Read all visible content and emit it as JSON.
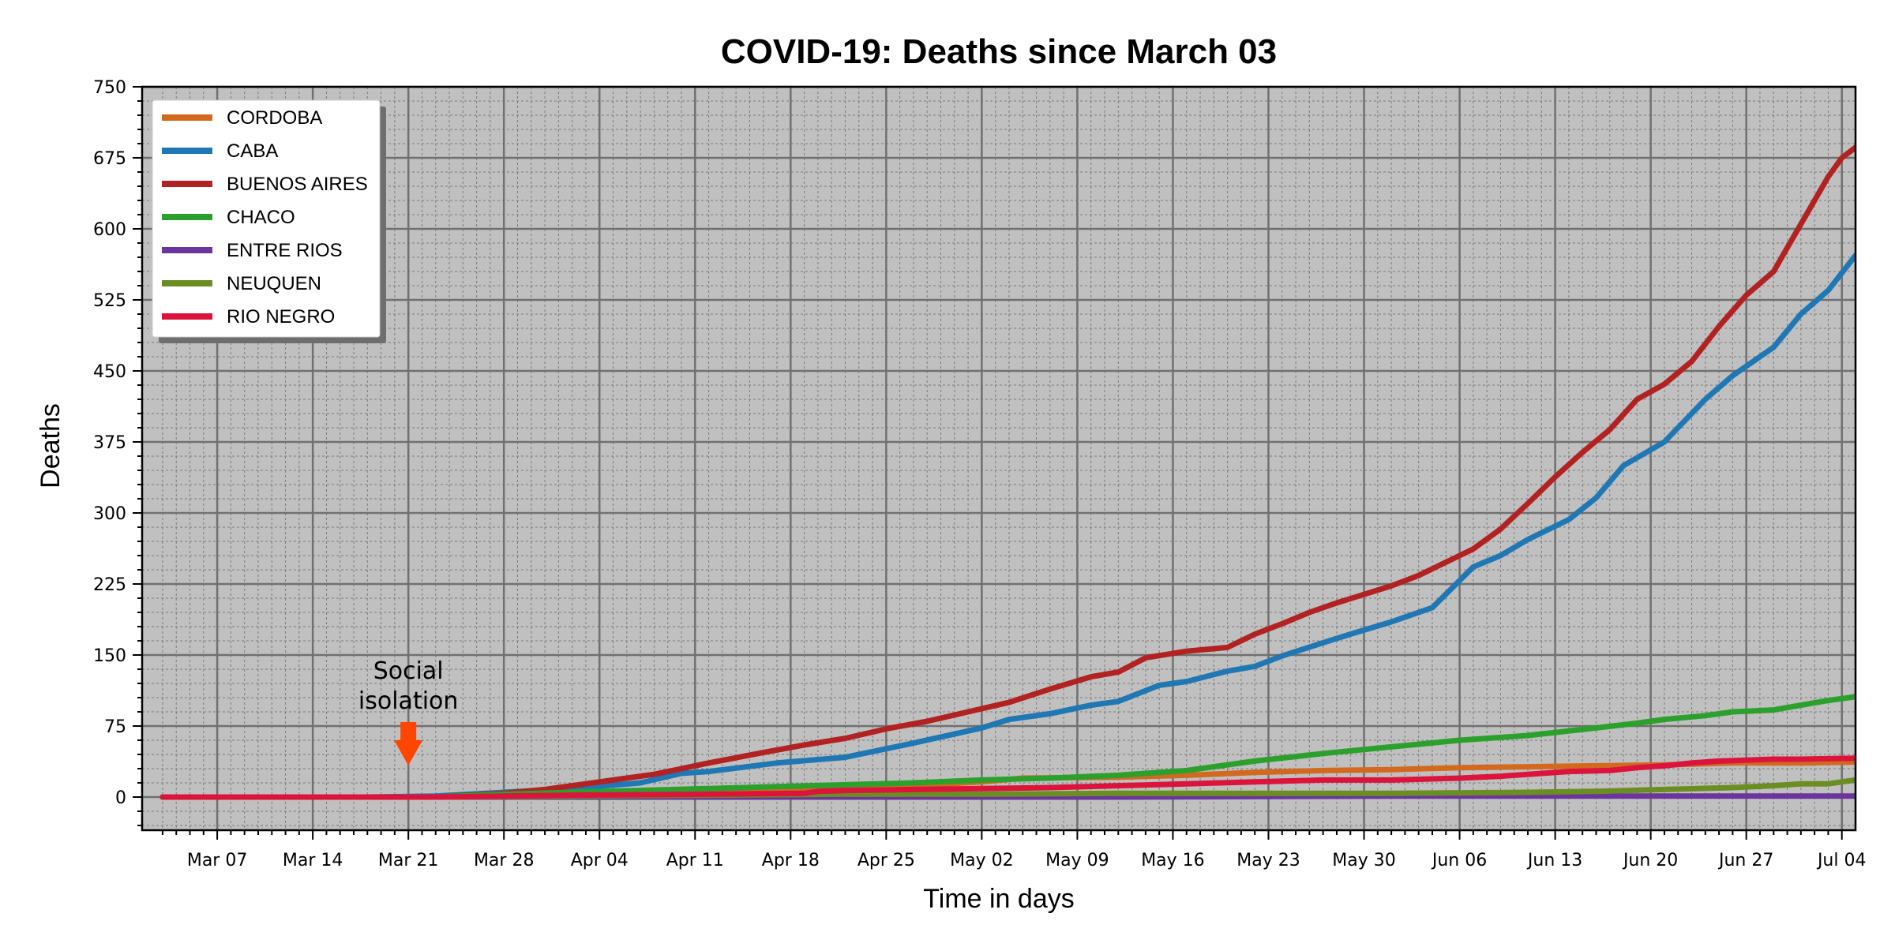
{
  "chart_data": {
    "type": "line",
    "title": "COVID-19: Deaths since March 03",
    "xlabel": "Time in days",
    "ylabel": "Deaths",
    "x_start": "Mar 03",
    "x_end": "Jul 05",
    "ylim": [
      -35,
      750
    ],
    "yticks": [
      0,
      75,
      150,
      225,
      300,
      375,
      450,
      525,
      600,
      675,
      750
    ],
    "xticks": [
      {
        "label": "Mar 07",
        "day": 4
      },
      {
        "label": "Mar 14",
        "day": 11
      },
      {
        "label": "Mar 21",
        "day": 18
      },
      {
        "label": "Mar 28",
        "day": 25
      },
      {
        "label": "Apr 04",
        "day": 32
      },
      {
        "label": "Apr 11",
        "day": 39
      },
      {
        "label": "Apr 18",
        "day": 46
      },
      {
        "label": "Apr 25",
        "day": 53
      },
      {
        "label": "May 02",
        "day": 60
      },
      {
        "label": "May 09",
        "day": 67
      },
      {
        "label": "May 16",
        "day": 74
      },
      {
        "label": "May 23",
        "day": 81
      },
      {
        "label": "May 30",
        "day": 88
      },
      {
        "label": "Jun 06",
        "day": 95
      },
      {
        "label": "Jun 13",
        "day": 102
      },
      {
        "label": "Jun 20",
        "day": 109
      },
      {
        "label": "Jun 27",
        "day": 116
      },
      {
        "label": "Jul 04",
        "day": 123
      }
    ],
    "grid": true,
    "legend_position": "top-left",
    "background": "#c0c0c0",
    "annotation": {
      "text_line1": "Social",
      "text_line2": "isolation",
      "day": 18,
      "color": "#ff4500"
    },
    "series": [
      {
        "name": "CORDOBA",
        "color": "#d2691e",
        "points": [
          [
            0,
            0
          ],
          [
            20,
            0
          ],
          [
            25,
            2
          ],
          [
            30,
            3
          ],
          [
            40,
            5
          ],
          [
            50,
            8
          ],
          [
            60,
            16
          ],
          [
            63,
            20
          ],
          [
            70,
            21
          ],
          [
            75,
            23
          ],
          [
            80,
            26
          ],
          [
            85,
            28
          ],
          [
            90,
            29
          ],
          [
            95,
            31
          ],
          [
            100,
            32
          ],
          [
            105,
            33
          ],
          [
            110,
            34
          ],
          [
            115,
            36
          ],
          [
            120,
            36
          ],
          [
            124,
            37
          ]
        ]
      },
      {
        "name": "CABA",
        "color": "#1f77b4",
        "points": [
          [
            0,
            0
          ],
          [
            15,
            0
          ],
          [
            20,
            1
          ],
          [
            25,
            5
          ],
          [
            30,
            9
          ],
          [
            35,
            15
          ],
          [
            38,
            25
          ],
          [
            40,
            27
          ],
          [
            45,
            36
          ],
          [
            50,
            42
          ],
          [
            55,
            57
          ],
          [
            60,
            73
          ],
          [
            62,
            82
          ],
          [
            65,
            88
          ],
          [
            68,
            97
          ],
          [
            70,
            101
          ],
          [
            73,
            118
          ],
          [
            75,
            122
          ],
          [
            78,
            133
          ],
          [
            80,
            138
          ],
          [
            82,
            149
          ],
          [
            85,
            163
          ],
          [
            87,
            172
          ],
          [
            90,
            185
          ],
          [
            93,
            200
          ],
          [
            96,
            243
          ],
          [
            98,
            255
          ],
          [
            100,
            272
          ],
          [
            103,
            293
          ],
          [
            105,
            316
          ],
          [
            107,
            350
          ],
          [
            110,
            375
          ],
          [
            113,
            420
          ],
          [
            115,
            445
          ],
          [
            118,
            475
          ],
          [
            120,
            510
          ],
          [
            122,
            535
          ],
          [
            124,
            572
          ]
        ]
      },
      {
        "name": "BUENOS AIRES",
        "color": "#b22222",
        "points": [
          [
            0,
            0
          ],
          [
            20,
            0
          ],
          [
            25,
            4
          ],
          [
            28,
            8
          ],
          [
            30,
            12
          ],
          [
            33,
            18
          ],
          [
            36,
            24
          ],
          [
            38,
            30
          ],
          [
            40,
            36
          ],
          [
            44,
            47
          ],
          [
            47,
            55
          ],
          [
            50,
            62
          ],
          [
            53,
            72
          ],
          [
            56,
            80
          ],
          [
            59,
            90
          ],
          [
            62,
            100
          ],
          [
            65,
            114
          ],
          [
            68,
            127
          ],
          [
            70,
            132
          ],
          [
            72,
            147
          ],
          [
            75,
            154
          ],
          [
            78,
            158
          ],
          [
            80,
            172
          ],
          [
            82,
            183
          ],
          [
            84,
            195
          ],
          [
            86,
            205
          ],
          [
            88,
            214
          ],
          [
            90,
            223
          ],
          [
            92,
            234
          ],
          [
            94,
            248
          ],
          [
            96,
            262
          ],
          [
            98,
            283
          ],
          [
            100,
            310
          ],
          [
            102,
            338
          ],
          [
            104,
            364
          ],
          [
            106,
            388
          ],
          [
            108,
            420
          ],
          [
            110,
            436
          ],
          [
            112,
            460
          ],
          [
            114,
            497
          ],
          [
            116,
            530
          ],
          [
            118,
            555
          ],
          [
            119,
            580
          ],
          [
            120,
            605
          ],
          [
            121,
            630
          ],
          [
            122,
            655
          ],
          [
            123,
            675
          ],
          [
            124,
            686
          ]
        ]
      },
      {
        "name": "CHACO",
        "color": "#2ca02c",
        "points": [
          [
            0,
            0
          ],
          [
            20,
            0
          ],
          [
            25,
            3
          ],
          [
            30,
            5
          ],
          [
            35,
            7
          ],
          [
            40,
            9
          ],
          [
            45,
            11
          ],
          [
            50,
            13
          ],
          [
            55,
            15
          ],
          [
            60,
            18
          ],
          [
            65,
            20
          ],
          [
            70,
            23
          ],
          [
            75,
            28
          ],
          [
            80,
            38
          ],
          [
            85,
            46
          ],
          [
            90,
            53
          ],
          [
            95,
            60
          ],
          [
            100,
            65
          ],
          [
            105,
            73
          ],
          [
            108,
            78
          ],
          [
            110,
            82
          ],
          [
            113,
            86
          ],
          [
            115,
            90
          ],
          [
            118,
            92
          ],
          [
            120,
            97
          ],
          [
            122,
            102
          ],
          [
            124,
            106
          ]
        ]
      },
      {
        "name": "ENTRE RIOS",
        "color": "#6a359c",
        "points": [
          [
            0,
            0
          ],
          [
            20,
            0
          ],
          [
            30,
            0
          ],
          [
            50,
            0
          ],
          [
            70,
            0
          ],
          [
            90,
            1
          ],
          [
            110,
            1
          ],
          [
            124,
            1
          ]
        ]
      },
      {
        "name": "NEUQUEN",
        "color": "#6b8e23",
        "points": [
          [
            0,
            0
          ],
          [
            20,
            0
          ],
          [
            30,
            1
          ],
          [
            40,
            2
          ],
          [
            50,
            3
          ],
          [
            60,
            3
          ],
          [
            70,
            4
          ],
          [
            80,
            4
          ],
          [
            90,
            4
          ],
          [
            100,
            5
          ],
          [
            105,
            6
          ],
          [
            110,
            8
          ],
          [
            115,
            10
          ],
          [
            118,
            12
          ],
          [
            120,
            14
          ],
          [
            122,
            14
          ],
          [
            124,
            18
          ]
        ]
      },
      {
        "name": "RIO NEGRO",
        "color": "#dc143c",
        "points": [
          [
            0,
            0
          ],
          [
            20,
            0
          ],
          [
            25,
            1
          ],
          [
            30,
            2
          ],
          [
            40,
            3
          ],
          [
            47,
            4
          ],
          [
            48,
            6
          ],
          [
            50,
            7
          ],
          [
            55,
            8
          ],
          [
            60,
            9
          ],
          [
            65,
            10
          ],
          [
            70,
            12
          ],
          [
            75,
            14
          ],
          [
            80,
            16
          ],
          [
            85,
            18
          ],
          [
            90,
            18
          ],
          [
            95,
            20
          ],
          [
            98,
            22
          ],
          [
            100,
            24
          ],
          [
            103,
            27
          ],
          [
            106,
            28
          ],
          [
            108,
            31
          ],
          [
            110,
            33
          ],
          [
            112,
            36
          ],
          [
            114,
            38
          ],
          [
            116,
            39
          ],
          [
            118,
            40
          ],
          [
            120,
            40
          ],
          [
            124,
            41
          ]
        ]
      }
    ]
  }
}
